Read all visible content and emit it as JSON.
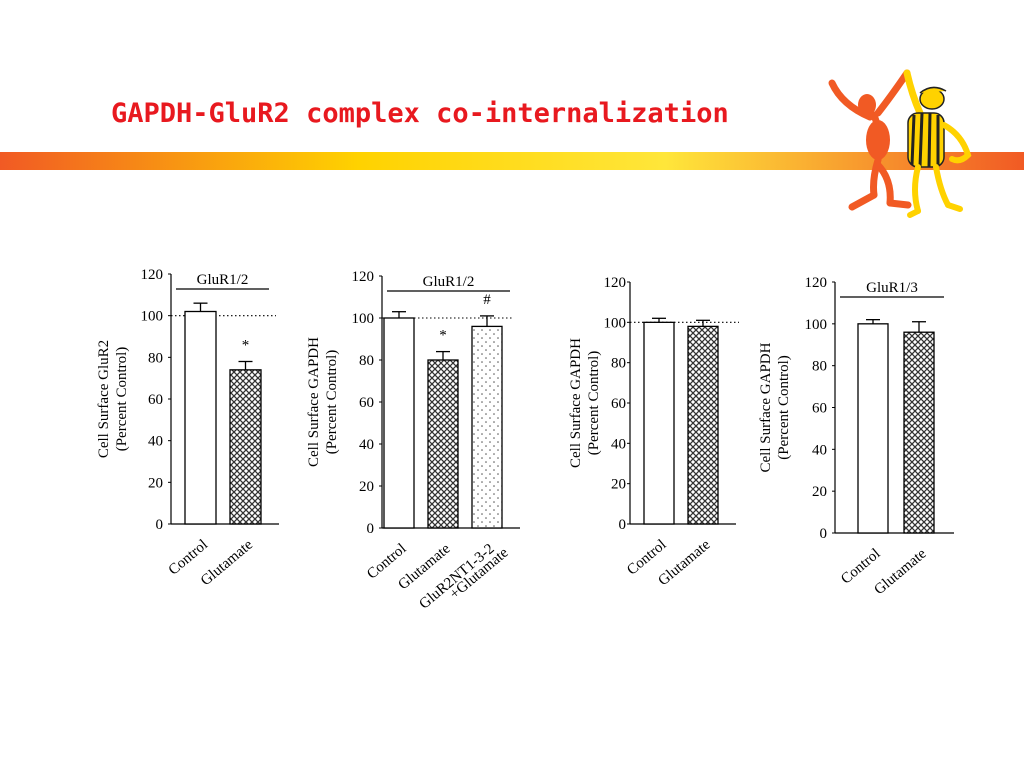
{
  "slide": {
    "title": "GAPDH-GluR2 complex co-internalization",
    "band_colors": [
      "#ffd200",
      "#f15a24"
    ],
    "title_color": "#e8191f"
  },
  "chart_data": [
    {
      "type": "bar",
      "group_label": "GluR1/2",
      "ylabel": [
        "Cell Surface GluR2",
        "(Percent Control)"
      ],
      "ylim": [
        0,
        120
      ],
      "yticks": [
        0,
        20,
        40,
        60,
        80,
        100,
        120
      ],
      "reference_line": 100,
      "categories": [
        [
          "Control"
        ],
        [
          "Glutamate"
        ]
      ],
      "values": [
        102,
        74
      ],
      "errors": [
        4,
        4
      ],
      "patterns": [
        "white",
        "crosshatch"
      ],
      "annotations": [
        {
          "bar": 1,
          "text": "*"
        }
      ]
    },
    {
      "type": "bar",
      "group_label": "GluR1/2",
      "ylabel": [
        "Cell Surface GAPDH",
        "(Percent Control)"
      ],
      "ylim": [
        0,
        120
      ],
      "yticks": [
        0,
        20,
        40,
        60,
        80,
        100,
        120
      ],
      "reference_line": 100,
      "categories": [
        [
          "Control"
        ],
        [
          "Glutamate"
        ],
        [
          "GluR2NT1-3-2",
          "+Glutamate"
        ]
      ],
      "values": [
        100,
        80,
        96
      ],
      "errors": [
        3,
        4,
        5
      ],
      "patterns": [
        "white",
        "crosshatch",
        "dots"
      ],
      "annotations": [
        {
          "bar": 1,
          "text": "*"
        },
        {
          "bar": 2,
          "text": "#"
        }
      ]
    },
    {
      "type": "bar",
      "group_label": "",
      "ylabel": [
        "Cell Surface GAPDH",
        "(Percent Control)"
      ],
      "ylim": [
        0,
        120
      ],
      "yticks": [
        0,
        20,
        40,
        60,
        80,
        100,
        120
      ],
      "reference_line": 100,
      "categories": [
        [
          "Control"
        ],
        [
          "Glutamate"
        ]
      ],
      "values": [
        100,
        98
      ],
      "errors": [
        2,
        3
      ],
      "patterns": [
        "white",
        "crosshatch"
      ],
      "annotations": []
    },
    {
      "type": "bar",
      "group_label": "GluR1/3",
      "ylabel": [
        "Cell Surface GAPDH",
        "(Percent Control)"
      ],
      "ylim": [
        0,
        120
      ],
      "yticks": [
        0,
        20,
        40,
        60,
        80,
        100,
        120
      ],
      "reference_line": null,
      "categories": [
        [
          "Control"
        ],
        [
          "Glutamate"
        ]
      ],
      "values": [
        100,
        96
      ],
      "errors": [
        2,
        5
      ],
      "patterns": [
        "white",
        "crosshatch"
      ],
      "annotations": []
    }
  ]
}
